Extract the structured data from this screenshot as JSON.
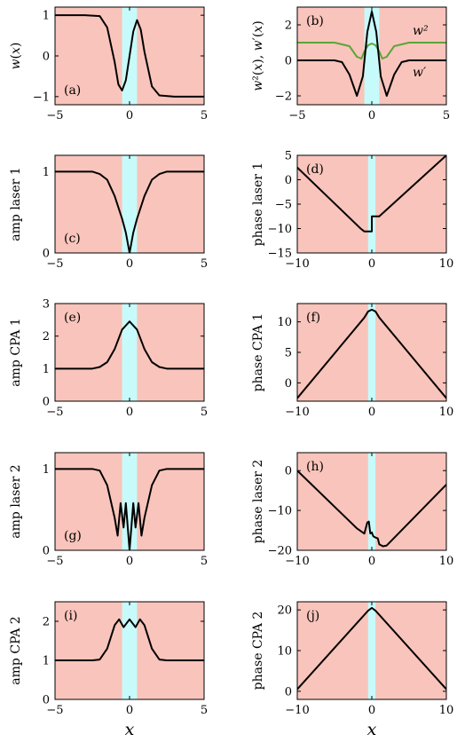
{
  "colors": {
    "background_band": "#f9c4bb",
    "center_band": "#c7fbfb",
    "curve": "#000000",
    "w2_curve": "#5aa639"
  },
  "xlabel": "x",
  "chart_data": [
    {
      "id": "a",
      "type": "line",
      "panel_label": "(a)",
      "ylabel": "w(x)",
      "xlim": [
        -5,
        5
      ],
      "ylim": [
        -1.2,
        1.2
      ],
      "xticks": [
        "−5",
        "0",
        "5"
      ],
      "yticks": [
        "1",
        "0",
        "−1"
      ],
      "shaded_band_x": [
        -0.5,
        0.5
      ],
      "series": [
        {
          "x": [
            -5,
            -3,
            -2,
            -1.5,
            -1,
            -0.75,
            -0.5,
            -0.25,
            0,
            0.25,
            0.5,
            0.75,
            1,
            1.5,
            2,
            3,
            5
          ],
          "y": [
            1,
            1,
            0.98,
            0.7,
            -0.15,
            -0.7,
            -0.85,
            -0.6,
            0,
            0.6,
            0.88,
            0.65,
            0.1,
            -0.75,
            -0.97,
            -1,
            -1
          ]
        }
      ]
    },
    {
      "id": "b",
      "type": "line",
      "panel_label": "(b)",
      "ylabel": "w²(x), w′(x)",
      "xlim": [
        -5,
        5
      ],
      "ylim": [
        -2.5,
        3
      ],
      "xticks": [
        "−5",
        "0",
        "5"
      ],
      "yticks": [
        "2",
        "0",
        "−2"
      ],
      "shaded_band_x": [
        -0.5,
        0.5
      ],
      "annotations": [
        "w²",
        "w′"
      ],
      "series": [
        {
          "name": "w²",
          "x": [
            -5,
            -2.5,
            -1.5,
            -1,
            -0.7,
            -0.5,
            -0.25,
            0,
            0.25,
            0.5,
            0.7,
            1,
            1.5,
            2.5,
            5
          ],
          "y": [
            1,
            1,
            0.8,
            0.2,
            0.1,
            0.5,
            0.85,
            0.95,
            0.85,
            0.5,
            0.1,
            0.2,
            0.8,
            1,
            1
          ]
        },
        {
          "name": "w′",
          "x": [
            -5,
            -2.5,
            -2,
            -1.5,
            -1,
            -0.6,
            -0.3,
            0,
            0.3,
            0.6,
            1,
            1.5,
            2,
            2.5,
            5
          ],
          "y": [
            0,
            0,
            -0.1,
            -0.8,
            -2,
            -0.9,
            1.6,
            2.75,
            1.6,
            -0.9,
            -2,
            -0.8,
            -0.1,
            0,
            0
          ]
        }
      ]
    },
    {
      "id": "c",
      "type": "line",
      "panel_label": "(c)",
      "ylabel": "amp laser 1",
      "xlim": [
        -5,
        5
      ],
      "ylim": [
        0,
        1.2
      ],
      "xticks": [
        "−5",
        "0",
        "5"
      ],
      "yticks": [
        "1",
        "0"
      ],
      "shaded_band_x": [
        -0.5,
        0.5
      ],
      "series": [
        {
          "x": [
            -5,
            -2.5,
            -2,
            -1.5,
            -1,
            -0.5,
            -0.25,
            0,
            0.25,
            0.5,
            1,
            1.5,
            2,
            2.5,
            5
          ],
          "y": [
            1,
            1,
            0.97,
            0.9,
            0.7,
            0.42,
            0.25,
            0,
            0.25,
            0.42,
            0.7,
            0.9,
            0.97,
            1,
            1
          ]
        }
      ]
    },
    {
      "id": "d",
      "type": "line",
      "panel_label": "(d)",
      "ylabel": "phase laser 1",
      "xlim": [
        -10,
        10
      ],
      "ylim": [
        -15,
        5
      ],
      "xticks": [
        "−10",
        "0",
        "10"
      ],
      "yticks": [
        "5",
        "0",
        "−5",
        "−10",
        "−15"
      ],
      "shaded_band_x": [
        -0.5,
        0.5
      ],
      "series": [
        {
          "x": [
            -10,
            -1.5,
            -1,
            -0.5,
            0,
            0,
            0.5,
            1,
            10
          ],
          "y": [
            2.5,
            -10,
            -10.6,
            -10.6,
            -10.6,
            -7.5,
            -7.5,
            -7.5,
            5
          ]
        }
      ]
    },
    {
      "id": "e",
      "type": "line",
      "panel_label": "(e)",
      "ylabel": "amp CPA 1",
      "xlim": [
        -5,
        5
      ],
      "ylim": [
        0,
        3
      ],
      "xticks": [
        "−5",
        "0",
        "5"
      ],
      "yticks": [
        "3",
        "2",
        "1",
        "0"
      ],
      "shaded_band_x": [
        -0.5,
        0.5
      ],
      "series": [
        {
          "x": [
            -5,
            -2.5,
            -2,
            -1.5,
            -1,
            -0.5,
            0,
            0.5,
            1,
            1.5,
            2,
            2.5,
            5
          ],
          "y": [
            1,
            1,
            1.05,
            1.2,
            1.6,
            2.2,
            2.45,
            2.2,
            1.6,
            1.2,
            1.05,
            1,
            1
          ]
        }
      ]
    },
    {
      "id": "f",
      "type": "line",
      "panel_label": "(f)",
      "ylabel": "phase CPA 1",
      "xlim": [
        -10,
        10
      ],
      "ylim": [
        -3,
        13
      ],
      "xticks": [
        "−10",
        "0",
        "10"
      ],
      "yticks": [
        "10",
        "5",
        "0"
      ],
      "shaded_band_x": [
        -0.5,
        0.5
      ],
      "series": [
        {
          "x": [
            -10,
            -1,
            -0.5,
            0,
            0.5,
            1,
            10
          ],
          "y": [
            -2.5,
            10.7,
            11.7,
            12,
            11.7,
            10.7,
            -2.5
          ]
        }
      ]
    },
    {
      "id": "g",
      "type": "line",
      "panel_label": "(g)",
      "ylabel": "amp laser 2",
      "xlim": [
        -5,
        5
      ],
      "ylim": [
        0,
        1.2
      ],
      "xticks": [
        "−5",
        "0",
        "5"
      ],
      "yticks": [
        "1",
        "0"
      ],
      "shaded_band_x": [
        -0.5,
        0.5
      ],
      "series": [
        {
          "x": [
            -5,
            -2.5,
            -2,
            -1.5,
            -1,
            -0.8,
            -0.6,
            -0.4,
            -0.25,
            0,
            0.25,
            0.4,
            0.6,
            0.8,
            1,
            1.5,
            2,
            2.5,
            5
          ],
          "y": [
            1,
            1,
            0.98,
            0.8,
            0.4,
            0.18,
            0.58,
            0.28,
            0.58,
            0,
            0.58,
            0.28,
            0.58,
            0.18,
            0.4,
            0.8,
            0.98,
            1,
            1
          ]
        }
      ]
    },
    {
      "id": "h",
      "type": "line",
      "panel_label": "(h)",
      "ylabel": "phase laser 2",
      "xlim": [
        -10,
        10
      ],
      "ylim": [
        -20,
        4.5
      ],
      "xticks": [
        "−10",
        "0",
        "10"
      ],
      "yticks": [
        "0",
        "−10",
        "−20"
      ],
      "shaded_band_x": [
        -0.5,
        0.5
      ],
      "series": [
        {
          "x": [
            -10,
            -2,
            -1,
            -0.6,
            -0.4,
            -0.2,
            0,
            0.2,
            0.5,
            0.8,
            1,
            1.5,
            2,
            10
          ],
          "y": [
            0,
            -14.5,
            -15.8,
            -13,
            -12.8,
            -15.8,
            -15.5,
            -16.5,
            -16.8,
            -17,
            -18.5,
            -19,
            -18.8,
            -3.5
          ]
        }
      ]
    },
    {
      "id": "i",
      "type": "line",
      "panel_label": "(i)",
      "ylabel": "amp CPA 2",
      "xlim": [
        -5,
        5
      ],
      "ylim": [
        0,
        2.5
      ],
      "xticks": [
        "−5",
        "0",
        "5"
      ],
      "yticks": [
        "2",
        "1",
        "0"
      ],
      "shaded_band_x": [
        -0.5,
        0.5
      ],
      "series": [
        {
          "x": [
            -5,
            -2.5,
            -2,
            -1.5,
            -1,
            -0.7,
            -0.4,
            0,
            0.4,
            0.7,
            1,
            1.5,
            2,
            2.5,
            5
          ],
          "y": [
            1,
            1,
            1.02,
            1.3,
            1.9,
            2.05,
            1.85,
            2.05,
            1.85,
            2.05,
            1.9,
            1.3,
            1.02,
            1,
            1
          ]
        }
      ]
    },
    {
      "id": "j",
      "type": "line",
      "panel_label": "(j)",
      "ylabel": "phase CPA 2",
      "xlim": [
        -10,
        10
      ],
      "ylim": [
        -2,
        22
      ],
      "xticks": [
        "−10",
        "0",
        "10"
      ],
      "yticks": [
        "20",
        "10",
        "0"
      ],
      "shaded_band_x": [
        -0.5,
        0.5
      ],
      "series": [
        {
          "x": [
            -10,
            -1,
            -0.5,
            0,
            0.5,
            1,
            10
          ],
          "y": [
            0.5,
            18.8,
            19.8,
            20.5,
            19.8,
            18.8,
            0.5
          ]
        }
      ]
    }
  ]
}
